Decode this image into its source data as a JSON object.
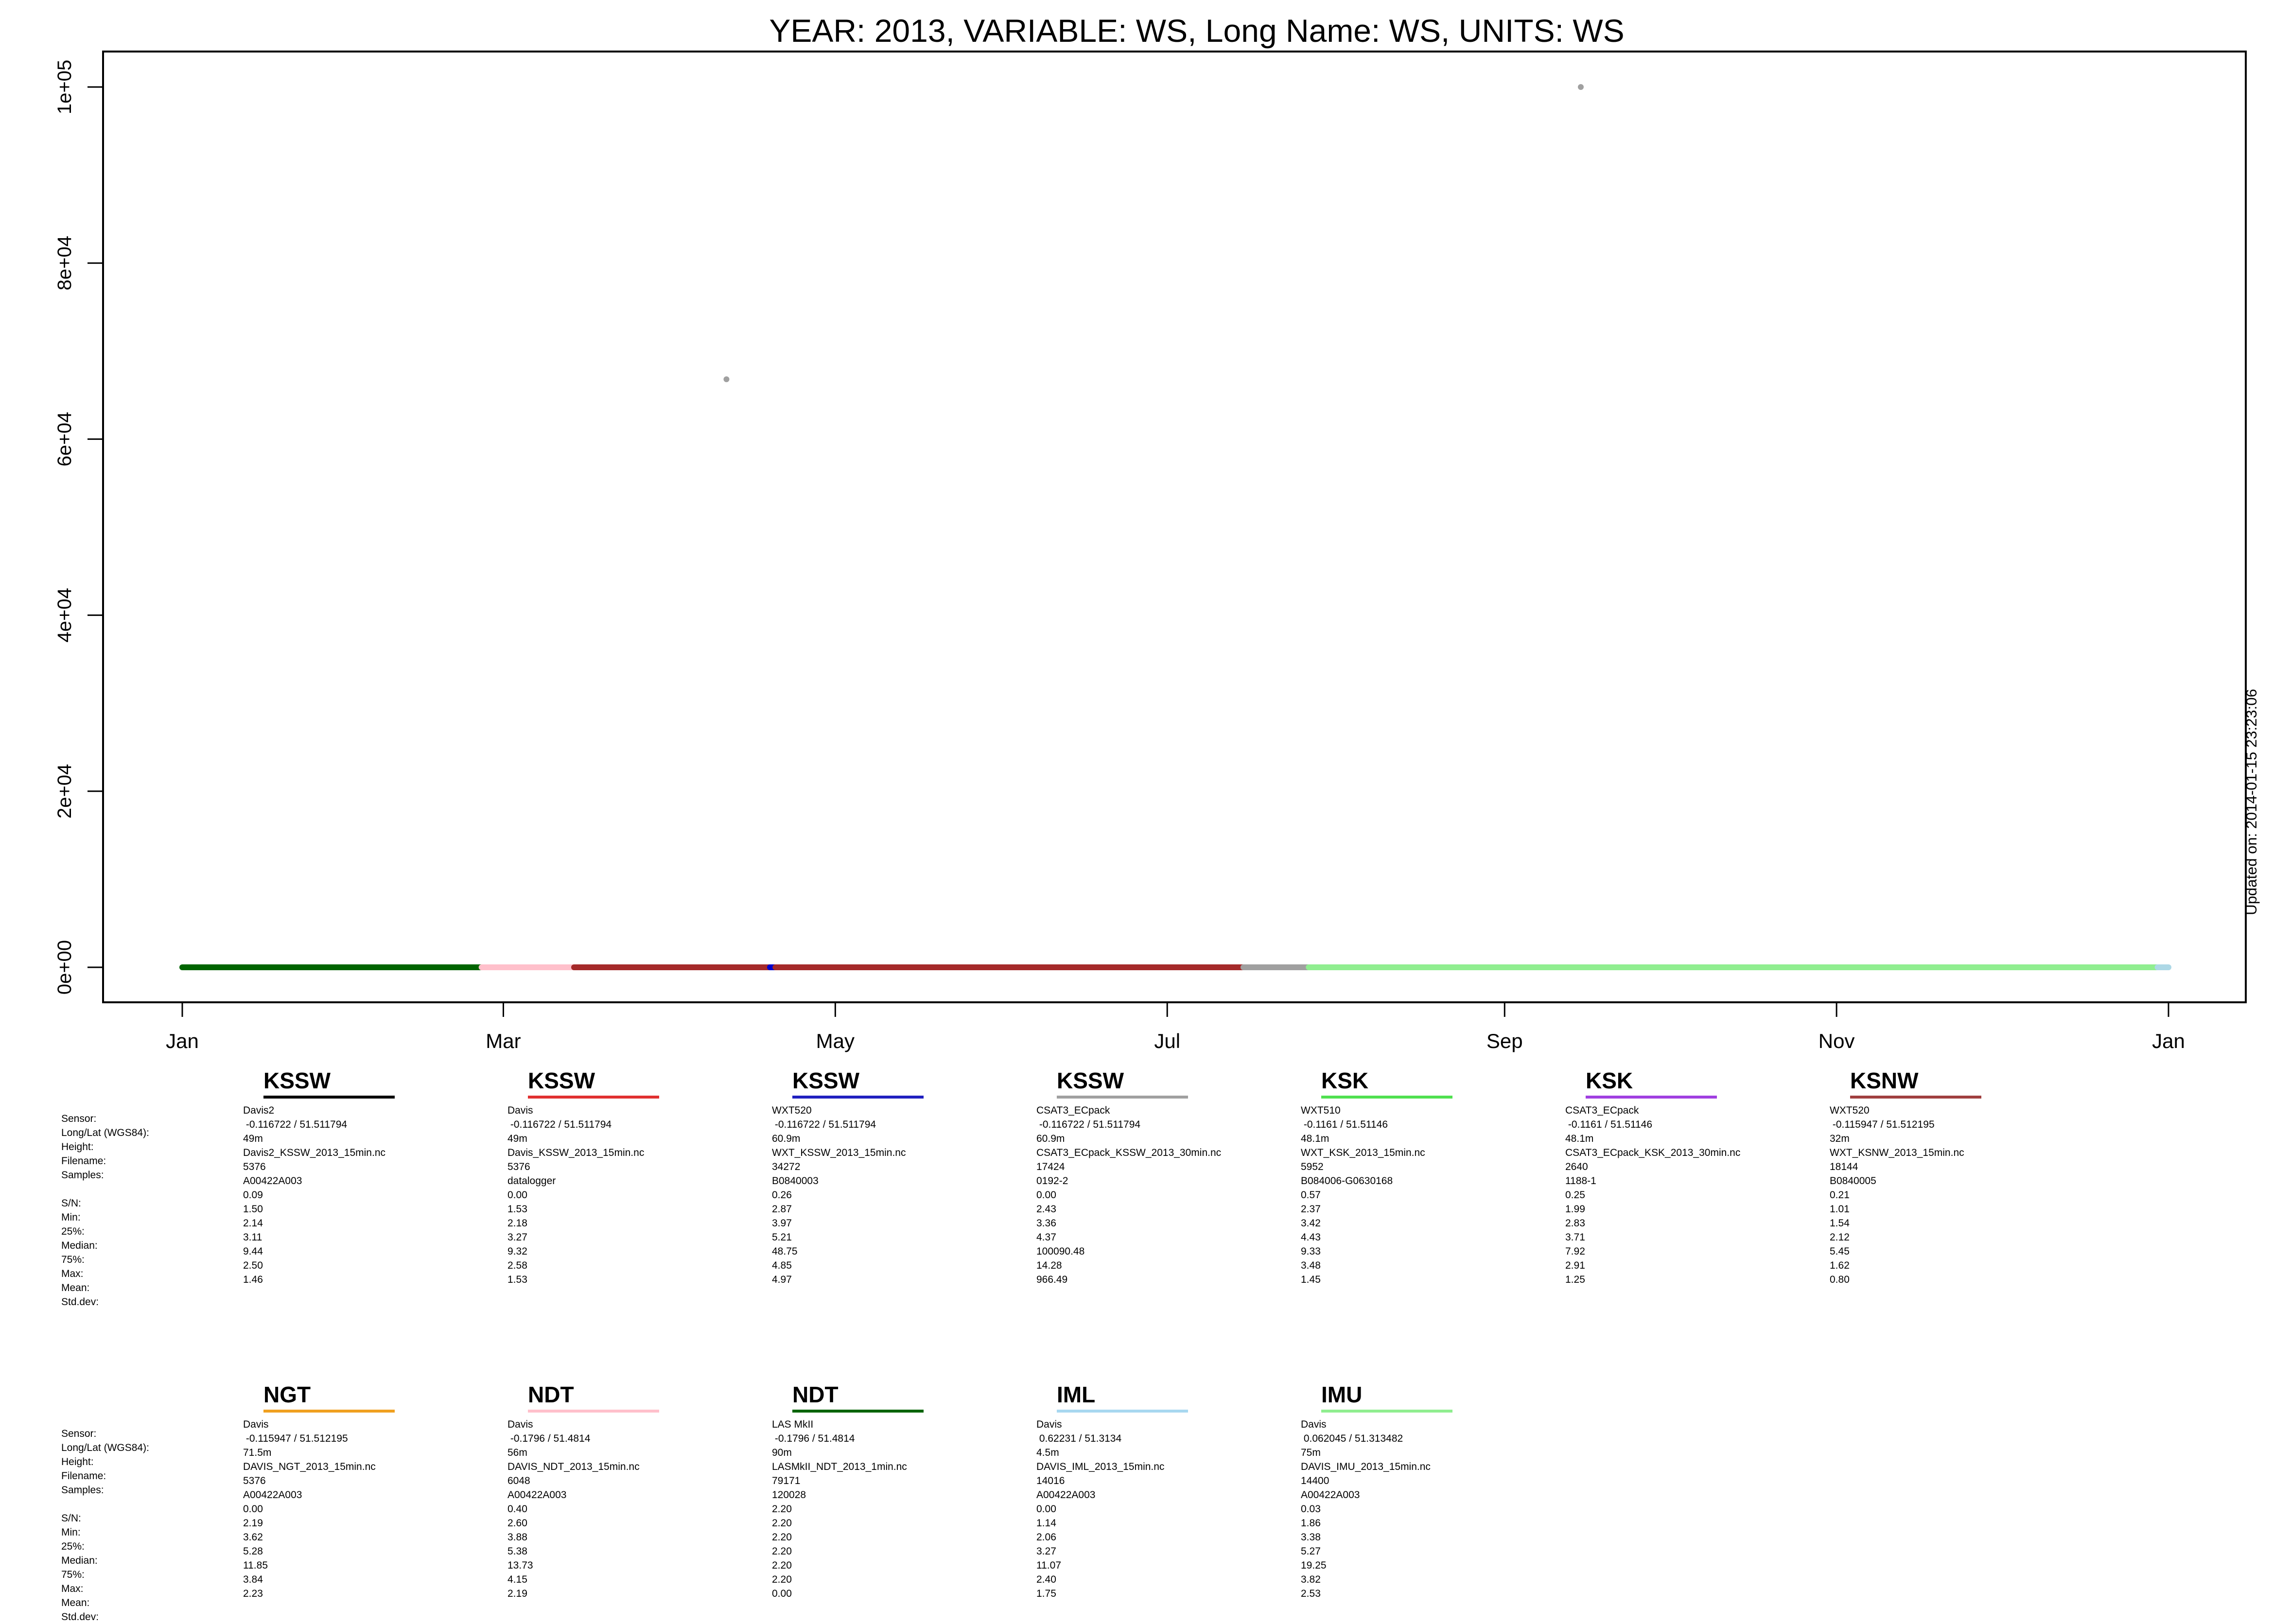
{
  "chart_data": {
    "type": "scatter",
    "title": "YEAR: 2013, VARIABLE: WS, Long Name: WS, UNITS: WS",
    "xlabel": "",
    "ylabel": "",
    "x_ticks": [
      "Jan",
      "Mar",
      "May",
      "Jul",
      "Sep",
      "Nov",
      "Jan"
    ],
    "x_tick_days": [
      0,
      59,
      120,
      181,
      243,
      304,
      365
    ],
    "ylim": [
      -4000,
      104000
    ],
    "y_ticks": [
      0,
      20000,
      40000,
      60000,
      80000,
      100000
    ],
    "y_tick_labels": [
      "0e+00",
      "2e+04",
      "4e+04",
      "6e+04",
      "8e+04",
      "1e+05"
    ],
    "grid": false,
    "series_segments": [
      {
        "color": "#006400",
        "x_start_day": 0,
        "x_end_day": 55,
        "y": 0
      },
      {
        "color": "#FFC0CB",
        "x_start_day": 55,
        "x_end_day": 72,
        "y": 0
      },
      {
        "color": "#A52A2A",
        "x_start_day": 72,
        "x_end_day": 108,
        "y": 0
      },
      {
        "color": "#0000CD",
        "x_start_day": 108,
        "x_end_day": 109,
        "y": 0
      },
      {
        "color": "#A52A2A",
        "x_start_day": 109,
        "x_end_day": 195,
        "y": 0
      },
      {
        "color": "#A0A0A0",
        "x_start_day": 195,
        "x_end_day": 207,
        "y": 0
      },
      {
        "color": "#90EE90",
        "x_start_day": 207,
        "x_end_day": 363,
        "y": 0
      },
      {
        "color": "#ADD8E6",
        "x_start_day": 363,
        "x_end_day": 365,
        "y": 0
      }
    ],
    "outliers": [
      {
        "x_day": 100,
        "y": 66800,
        "color": "#A0A0A0"
      },
      {
        "x_day": 257,
        "y": 100000,
        "color": "#A0A0A0"
      }
    ]
  },
  "updated": "Updated on: 2014-01-15 23:23:06",
  "row_labels": [
    "Sensor:",
    "Long/Lat (WGS84):",
    "Height:",
    "Filename:",
    "Samples:",
    "",
    "S/N:",
    "Min:",
    "25%:",
    "Median:",
    "75%:",
    "Max:",
    "Mean:",
    "Std.dev:"
  ],
  "stations_row1": [
    {
      "name": "KSSW",
      "color": "#000000",
      "values": [
        "Davis2",
        " -0.116722 / 51.511794",
        "49m",
        "Davis2_KSSW_2013_15min.nc",
        "5376",
        "A00422A003",
        "0.09",
        "1.50",
        "2.14",
        "3.11",
        "9.44",
        "2.50",
        "1.46"
      ]
    },
    {
      "name": "KSSW",
      "color": "#E03030",
      "values": [
        "Davis",
        " -0.116722 / 51.511794",
        "49m",
        "Davis_KSSW_2013_15min.nc",
        "5376",
        "datalogger",
        "0.00",
        "1.53",
        "2.18",
        "3.27",
        "9.32",
        "2.58",
        "1.53"
      ]
    },
    {
      "name": "KSSW",
      "color": "#2020C0",
      "values": [
        "WXT520",
        " -0.116722 / 51.511794",
        "60.9m",
        "WXT_KSSW_2013_15min.nc",
        "34272",
        "B0840003",
        "0.26",
        "2.87",
        "3.97",
        "5.21",
        "48.75",
        "4.85",
        "4.97"
      ]
    },
    {
      "name": "KSSW",
      "color": "#A0A0A0",
      "values": [
        "CSAT3_ECpack",
        " -0.116722 / 51.511794",
        "60.9m",
        "CSAT3_ECpack_KSSW_2013_30min.nc",
        "17424",
        "0192-2",
        "0.00",
        "2.43",
        "3.36",
        "4.37",
        "100090.48",
        "14.28",
        "966.49"
      ]
    },
    {
      "name": "KSK",
      "color": "#50E050",
      "values": [
        "WXT510",
        " -0.1161 / 51.51146",
        "48.1m",
        "WXT_KSK_2013_15min.nc",
        "5952",
        "B084006-G0630168",
        "0.57",
        "2.37",
        "3.42",
        "4.43",
        "9.33",
        "3.48",
        "1.45"
      ]
    },
    {
      "name": "KSK",
      "color": "#A040E0",
      "values": [
        "CSAT3_ECpack",
        " -0.1161 / 51.51146",
        "48.1m",
        "CSAT3_ECpack_KSK_2013_30min.nc",
        "2640",
        "1188-1",
        "0.25",
        "1.99",
        "2.83",
        "3.71",
        "7.92",
        "2.91",
        "1.25"
      ]
    },
    {
      "name": "KSNW",
      "color": "#A04040",
      "values": [
        "WXT520",
        " -0.115947 / 51.512195",
        "32m",
        "WXT_KSNW_2013_15min.nc",
        "18144",
        "B0840005",
        "0.21",
        "1.01",
        "1.54",
        "2.12",
        "5.45",
        "1.62",
        "0.80"
      ]
    }
  ],
  "stations_row2": [
    {
      "name": "NGT",
      "color": "#F0A020",
      "values": [
        "Davis",
        " -0.115947 / 51.512195",
        "71.5m",
        "DAVIS_NGT_2013_15min.nc",
        "5376",
        "A00422A003",
        "0.00",
        "2.19",
        "3.62",
        "5.28",
        "11.85",
        "3.84",
        "2.23"
      ]
    },
    {
      "name": "NDT",
      "color": "#FFC0CB",
      "values": [
        "Davis",
        " -0.1796 / 51.4814",
        "56m",
        "DAVIS_NDT_2013_15min.nc",
        "6048",
        "A00422A003",
        "0.40",
        "2.60",
        "3.88",
        "5.38",
        "13.73",
        "4.15",
        "2.19"
      ]
    },
    {
      "name": "NDT",
      "color": "#006400",
      "values": [
        "LAS MkII",
        " -0.1796 / 51.4814",
        "90m",
        "LASMkII_NDT_2013_1min.nc",
        "79171",
        "120028",
        "2.20",
        "2.20",
        "2.20",
        "2.20",
        "2.20",
        "2.20",
        "0.00"
      ]
    },
    {
      "name": "IML",
      "color": "#A8D8F0",
      "values": [
        "Davis",
        " 0.62231 / 51.3134",
        "4.5m",
        "DAVIS_IML_2013_15min.nc",
        "14016",
        "A00422A003",
        "0.00",
        "1.14",
        "2.06",
        "3.27",
        "11.07",
        "2.40",
        "1.75"
      ]
    },
    {
      "name": "IMU",
      "color": "#90EE90",
      "values": [
        "Davis",
        " 0.062045 / 51.313482",
        "75m",
        "DAVIS_IMU_2013_15min.nc",
        "14400",
        "A00422A003",
        "0.03",
        "1.86",
        "3.38",
        "5.27",
        "19.25",
        "3.82",
        "2.53"
      ]
    }
  ]
}
